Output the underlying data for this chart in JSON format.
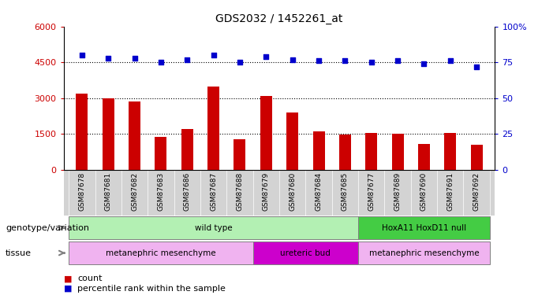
{
  "title": "GDS2032 / 1452261_at",
  "samples": [
    "GSM87678",
    "GSM87681",
    "GSM87682",
    "GSM87683",
    "GSM87686",
    "GSM87687",
    "GSM87688",
    "GSM87679",
    "GSM87680",
    "GSM87684",
    "GSM87685",
    "GSM87677",
    "GSM87689",
    "GSM87690",
    "GSM87691",
    "GSM87692"
  ],
  "counts": [
    3200,
    2980,
    2870,
    1380,
    1700,
    3500,
    1280,
    3100,
    2380,
    1620,
    1480,
    1530,
    1490,
    1080,
    1530,
    1050
  ],
  "percentiles": [
    80,
    78,
    78,
    75,
    77,
    80,
    75,
    79,
    77,
    76,
    76,
    75,
    76,
    74,
    76,
    72
  ],
  "ylim_left": [
    0,
    6000
  ],
  "ylim_right": [
    0,
    100
  ],
  "yticks_left": [
    0,
    1500,
    3000,
    4500,
    6000
  ],
  "yticks_right": [
    0,
    25,
    50,
    75,
    100
  ],
  "bar_color": "#cc0000",
  "dot_color": "#0000cc",
  "genotype_groups": [
    {
      "label": "wild type",
      "start": 0,
      "end": 11,
      "color": "#b3f0b3"
    },
    {
      "label": "HoxA11 HoxD11 null",
      "start": 11,
      "end": 16,
      "color": "#44cc44"
    }
  ],
  "tissue_groups": [
    {
      "label": "metanephric mesenchyme",
      "start": 0,
      "end": 7,
      "color": "#f0b3f0"
    },
    {
      "label": "ureteric bud",
      "start": 7,
      "end": 11,
      "color": "#cc00cc"
    },
    {
      "label": "metanephric mesenchyme",
      "start": 11,
      "end": 16,
      "color": "#f0b3f0"
    }
  ],
  "legend_count_label": "count",
  "legend_pct_label": "percentile rank within the sample",
  "genotype_label": "genotype/variation",
  "tissue_label": "tissue",
  "left_axis_color": "#cc0000",
  "right_axis_color": "#0000cc",
  "tick_bg_color": "#d3d3d3",
  "background_color": "#ffffff"
}
